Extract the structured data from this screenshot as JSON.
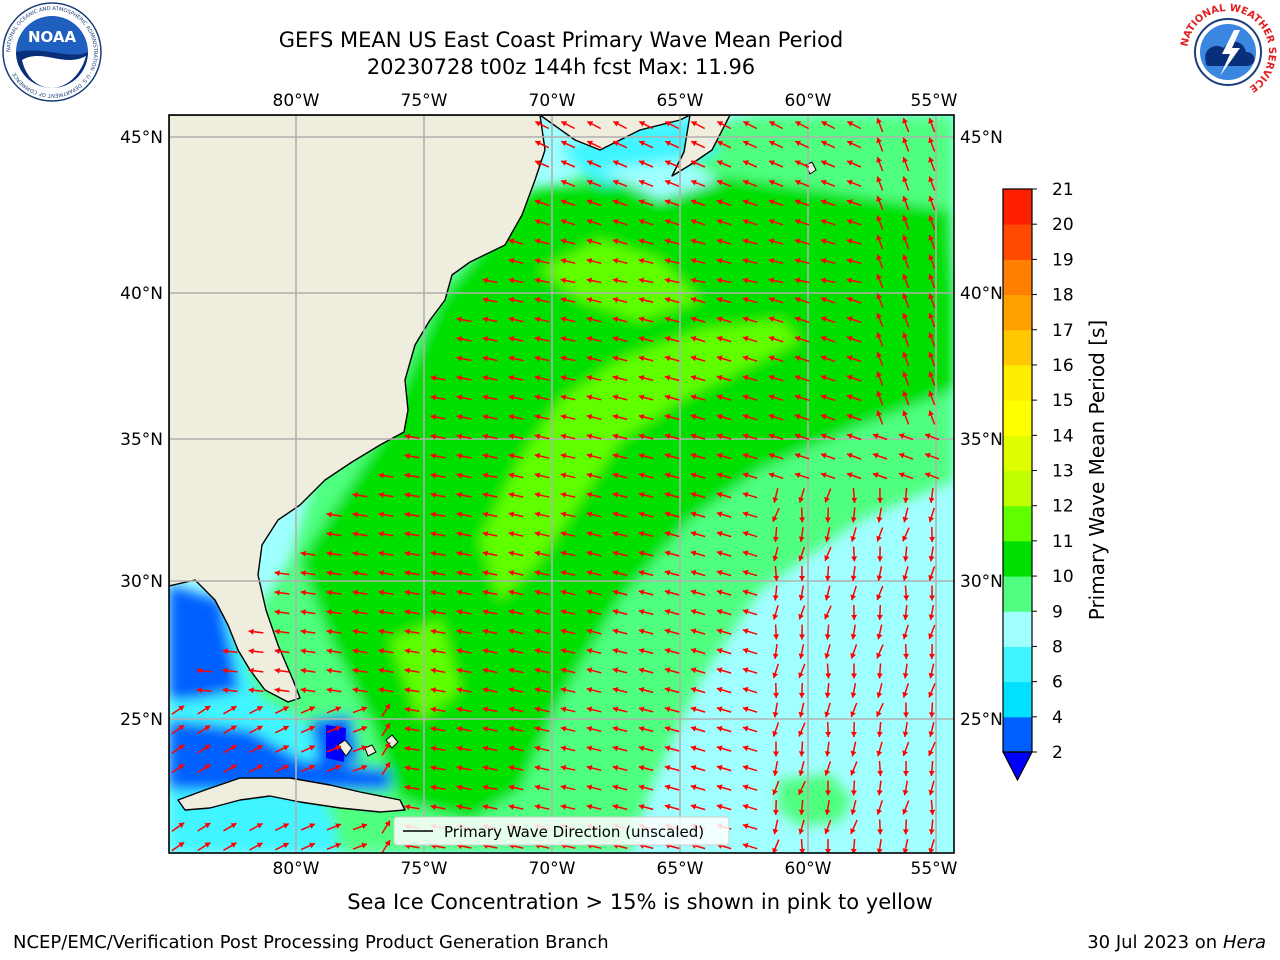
{
  "title": {
    "line1": "GEFS MEAN US East Coast Primary Wave Mean Period",
    "line2": "20230728 t00z 144h fcst   Max: 11.96"
  },
  "logos": {
    "noaa": {
      "text": "NOAA",
      "ring_text": "NATIONAL OCEANIC AND ATMOSPHERIC ADMINISTRATION · U.S. DEPARTMENT OF COMMERCE",
      "icon": "noaa-logo-icon"
    },
    "nws": {
      "ring_text": "NATIONAL WEATHER SERVICE",
      "icon": "nws-logo-icon"
    }
  },
  "map": {
    "lon_labels": [
      "80°W",
      "75°W",
      "70°W",
      "65°W",
      "60°W",
      "55°W"
    ],
    "lat_labels": [
      "45°N",
      "40°N",
      "35°N",
      "30°N",
      "25°N"
    ],
    "lon_values": [
      -80,
      -75,
      -70,
      -65,
      -60,
      -55
    ],
    "lat_values": [
      45,
      40,
      35,
      30,
      25
    ],
    "legend_label": "Primary Wave Direction (unscaled)",
    "colors": {
      "land": "#efedde",
      "gridline": "#b0b0b0",
      "arrow": "#ff0000",
      "coastline": "#000000"
    }
  },
  "colorbar": {
    "label": "Primary Wave Mean Period [s]",
    "ticks": [
      "2",
      "4",
      "6",
      "8",
      "9",
      "10",
      "11",
      "12",
      "13",
      "14",
      "15",
      "16",
      "17",
      "18",
      "19",
      "20",
      "21"
    ],
    "colors": [
      "#0060ff",
      "#00e0ff",
      "#40f5ff",
      "#a0ffff",
      "#50ff80",
      "#00e000",
      "#60ff00",
      "#c0ff00",
      "#dfff00",
      "#ffff00",
      "#ffee00",
      "#ffc800",
      "#ffa000",
      "#ff8000",
      "#ff4800",
      "#ff2000",
      "#ff0000"
    ],
    "extend_color": "#0000ff"
  },
  "note": "Sea Ice Concentration > 15% is shown in pink to yellow",
  "footer": {
    "left": "NCEP/EMC/Verification Post Processing Product Generation Branch",
    "date": "30 Jul 2023 on",
    "host": "Hera"
  }
}
